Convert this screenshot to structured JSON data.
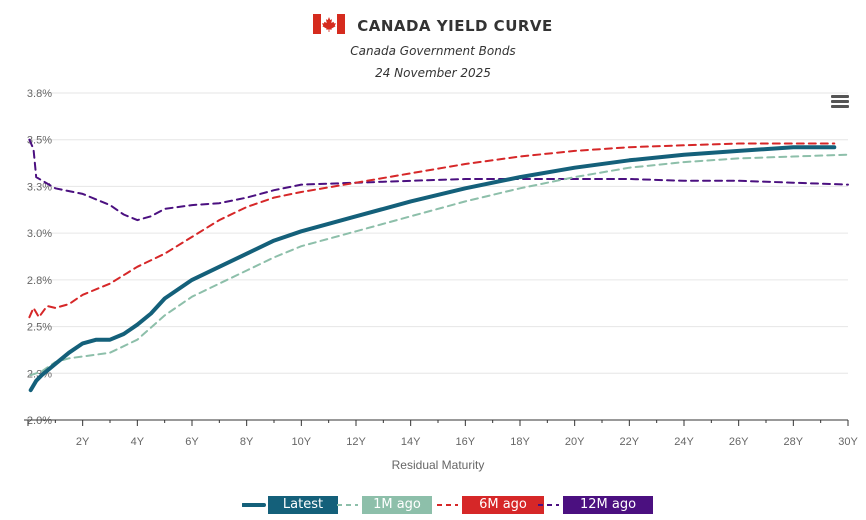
{
  "chart_data": {
    "type": "line",
    "title": "CANADA YIELD CURVE",
    "subtitle_lines": [
      "Canada Government Bonds",
      "24 November 2025"
    ],
    "xlabel": "Residual Maturity",
    "ylabel": "",
    "x_ticks": [
      "2Y",
      "4Y",
      "6Y",
      "8Y",
      "10Y",
      "12Y",
      "14Y",
      "16Y",
      "18Y",
      "20Y",
      "22Y",
      "24Y",
      "26Y",
      "28Y",
      "30Y"
    ],
    "y_ticks": [
      "2.0%",
      "2.3%",
      "2.5%",
      "2.8%",
      "3.0%",
      "3.3%",
      "3.5%",
      "3.8%"
    ],
    "xlim": [
      0,
      30
    ],
    "ylim": [
      2.0,
      3.75
    ],
    "grid": true,
    "legend_position": "bottom",
    "series": [
      {
        "name": "Latest",
        "color": "#14607a",
        "style": "solid",
        "points": [
          [
            0.1,
            2.16
          ],
          [
            0.3,
            2.21
          ],
          [
            0.5,
            2.24
          ],
          [
            1,
            2.3
          ],
          [
            1.5,
            2.36
          ],
          [
            2,
            2.41
          ],
          [
            2.5,
            2.43
          ],
          [
            3,
            2.43
          ],
          [
            3.5,
            2.46
          ],
          [
            4,
            2.51
          ],
          [
            4.5,
            2.57
          ],
          [
            5,
            2.65
          ],
          [
            6,
            2.75
          ],
          [
            7,
            2.82
          ],
          [
            8,
            2.89
          ],
          [
            9,
            2.96
          ],
          [
            10,
            3.01
          ],
          [
            11,
            3.05
          ],
          [
            12,
            3.09
          ],
          [
            13,
            3.13
          ],
          [
            14,
            3.17
          ],
          [
            16,
            3.24
          ],
          [
            18,
            3.3
          ],
          [
            20,
            3.35
          ],
          [
            22,
            3.39
          ],
          [
            24,
            3.42
          ],
          [
            26,
            3.44
          ],
          [
            28,
            3.46
          ],
          [
            29.5,
            3.46
          ]
        ]
      },
      {
        "name": "1M ago",
        "color": "#8dbfaa",
        "style": "dashed",
        "points": [
          [
            0.1,
            2.24
          ],
          [
            0.5,
            2.26
          ],
          [
            1,
            2.31
          ],
          [
            1.5,
            2.33
          ],
          [
            2,
            2.34
          ],
          [
            3,
            2.36
          ],
          [
            4,
            2.43
          ],
          [
            5,
            2.56
          ],
          [
            6,
            2.66
          ],
          [
            7,
            2.73
          ],
          [
            8,
            2.8
          ],
          [
            9,
            2.87
          ],
          [
            10,
            2.93
          ],
          [
            12,
            3.01
          ],
          [
            14,
            3.09
          ],
          [
            16,
            3.17
          ],
          [
            18,
            3.24
          ],
          [
            20,
            3.3
          ],
          [
            22,
            3.35
          ],
          [
            24,
            3.38
          ],
          [
            26,
            3.4
          ],
          [
            28,
            3.41
          ],
          [
            30,
            3.42
          ]
        ]
      },
      {
        "name": "6M ago",
        "color": "#d62728",
        "style": "dashed",
        "points": [
          [
            0.05,
            2.55
          ],
          [
            0.2,
            2.6
          ],
          [
            0.4,
            2.55
          ],
          [
            0.7,
            2.61
          ],
          [
            1,
            2.6
          ],
          [
            1.5,
            2.62
          ],
          [
            2,
            2.67
          ],
          [
            3,
            2.73
          ],
          [
            4,
            2.82
          ],
          [
            5,
            2.89
          ],
          [
            6,
            2.98
          ],
          [
            7,
            3.07
          ],
          [
            8,
            3.14
          ],
          [
            9,
            3.19
          ],
          [
            10,
            3.22
          ],
          [
            12,
            3.27
          ],
          [
            14,
            3.32
          ],
          [
            16,
            3.37
          ],
          [
            18,
            3.41
          ],
          [
            20,
            3.44
          ],
          [
            22,
            3.46
          ],
          [
            24,
            3.47
          ],
          [
            26,
            3.48
          ],
          [
            28,
            3.48
          ],
          [
            29.5,
            3.48
          ]
        ]
      },
      {
        "name": "12M ago",
        "color": "#4b1080",
        "style": "dashed",
        "points": [
          [
            0.05,
            3.5
          ],
          [
            0.2,
            3.45
          ],
          [
            0.3,
            3.3
          ],
          [
            1,
            3.24
          ],
          [
            2,
            3.21
          ],
          [
            3,
            3.15
          ],
          [
            3.5,
            3.1
          ],
          [
            4,
            3.07
          ],
          [
            4.5,
            3.09
          ],
          [
            5,
            3.13
          ],
          [
            6,
            3.15
          ],
          [
            7,
            3.16
          ],
          [
            8,
            3.19
          ],
          [
            9,
            3.23
          ],
          [
            10,
            3.26
          ],
          [
            12,
            3.27
          ],
          [
            14,
            3.28
          ],
          [
            16,
            3.29
          ],
          [
            18,
            3.29
          ],
          [
            20,
            3.29
          ],
          [
            22,
            3.29
          ],
          [
            24,
            3.28
          ],
          [
            26,
            3.28
          ],
          [
            28,
            3.27
          ],
          [
            30,
            3.26
          ]
        ]
      }
    ]
  },
  "menu_icon": "hamburger-menu-icon",
  "flag_icon": "canada-flag-icon"
}
